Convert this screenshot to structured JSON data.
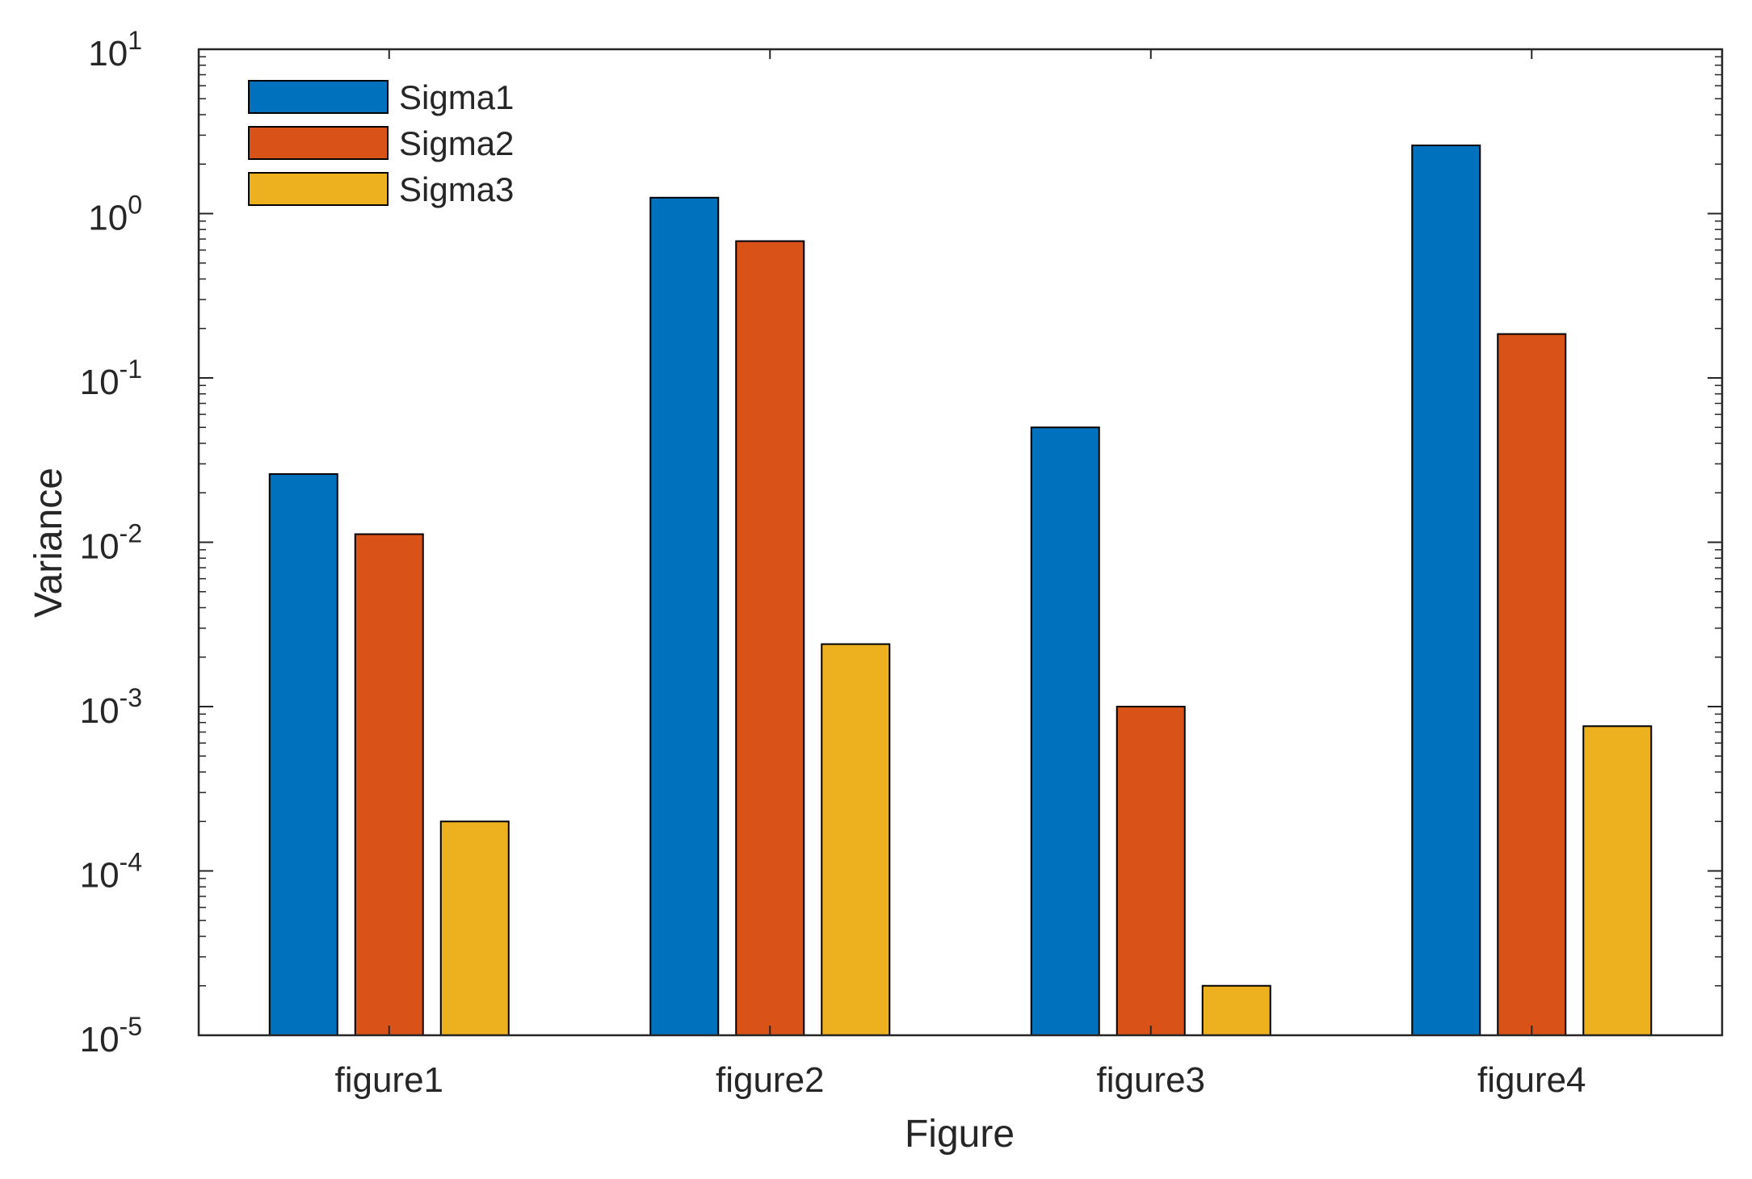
{
  "chart_data": {
    "type": "bar",
    "title": "",
    "xlabel": "Figure",
    "ylabel": "Variance",
    "yscale": "log",
    "ylim": [
      1e-05,
      10
    ],
    "y_ticks": [
      {
        "base": "10",
        "exp": "-5"
      },
      {
        "base": "10",
        "exp": "-4"
      },
      {
        "base": "10",
        "exp": "-3"
      },
      {
        "base": "10",
        "exp": "-2"
      },
      {
        "base": "10",
        "exp": "-1"
      },
      {
        "base": "10",
        "exp": "0"
      },
      {
        "base": "10",
        "exp": "1"
      }
    ],
    "categories": [
      "figure1",
      "figure2",
      "figure3",
      "figure4"
    ],
    "series": [
      {
        "name": "Sigma1",
        "color": "#0072BD",
        "values": [
          0.026,
          1.25,
          0.05,
          2.6
        ]
      },
      {
        "name": "Sigma2",
        "color": "#D95319",
        "values": [
          0.0112,
          0.68,
          0.001,
          0.185
        ]
      },
      {
        "name": "Sigma3",
        "color": "#EDB120",
        "values": [
          0.0002,
          0.0024,
          2e-05,
          0.00076
        ]
      }
    ],
    "legend_position": "top-left",
    "grid": false
  }
}
